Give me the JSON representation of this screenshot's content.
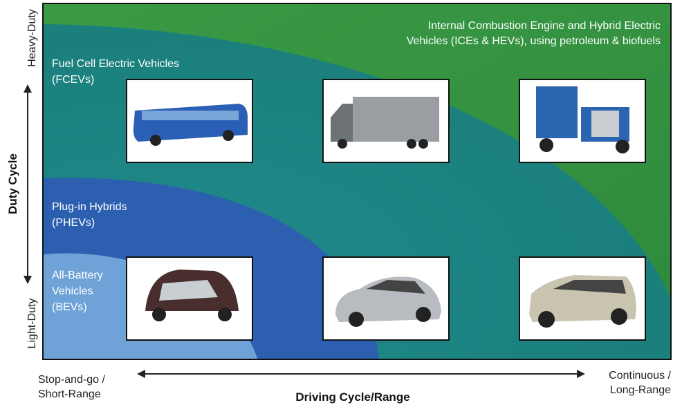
{
  "regions": [
    {
      "lines": [
        "Internal Combustion Engine and Hybrid Electric",
        "Vehicles (ICEs & HEVs), using petroleum & biofuels"
      ]
    },
    {
      "lines": [
        "Fuel Cell Electric Vehicles",
        "(FCEVs)"
      ]
    },
    {
      "lines": [
        "Plug-in Hybrids",
        "(PHEVs)"
      ]
    },
    {
      "lines": [
        "All-Battery",
        "Vehicles",
        "(BEVs)"
      ]
    }
  ],
  "y_axis": {
    "title": "Duty Cycle",
    "top": "Heavy-Duty",
    "bottom": "Light-Duty"
  },
  "x_axis": {
    "title": "Driving Cycle/Range",
    "left": [
      "Stop-and-go /",
      "Short-Range"
    ],
    "right": [
      "Continuous /",
      "Long-Range"
    ]
  }
}
